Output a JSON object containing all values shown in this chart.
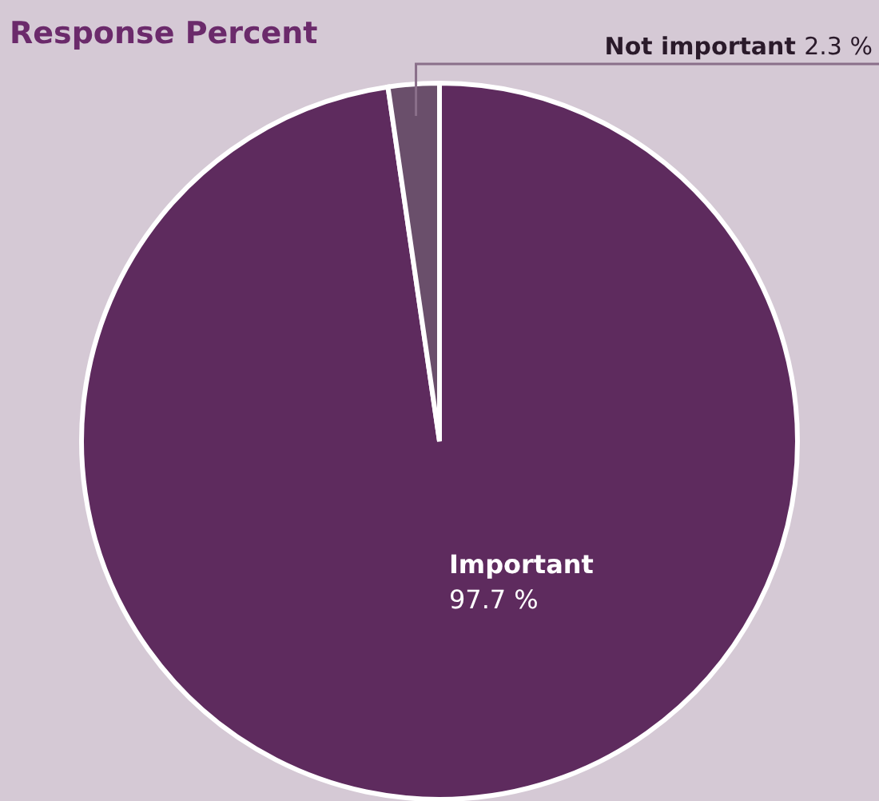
{
  "chart_data": {
    "type": "pie",
    "title": "Response Percent",
    "categories": [
      "Important",
      "Not important"
    ],
    "values": [
      97.7,
      2.3
    ],
    "colors": [
      "#5e2b5e",
      "#6a4f6b"
    ],
    "value_labels": [
      "97.7 %",
      "2.3 %"
    ]
  }
}
